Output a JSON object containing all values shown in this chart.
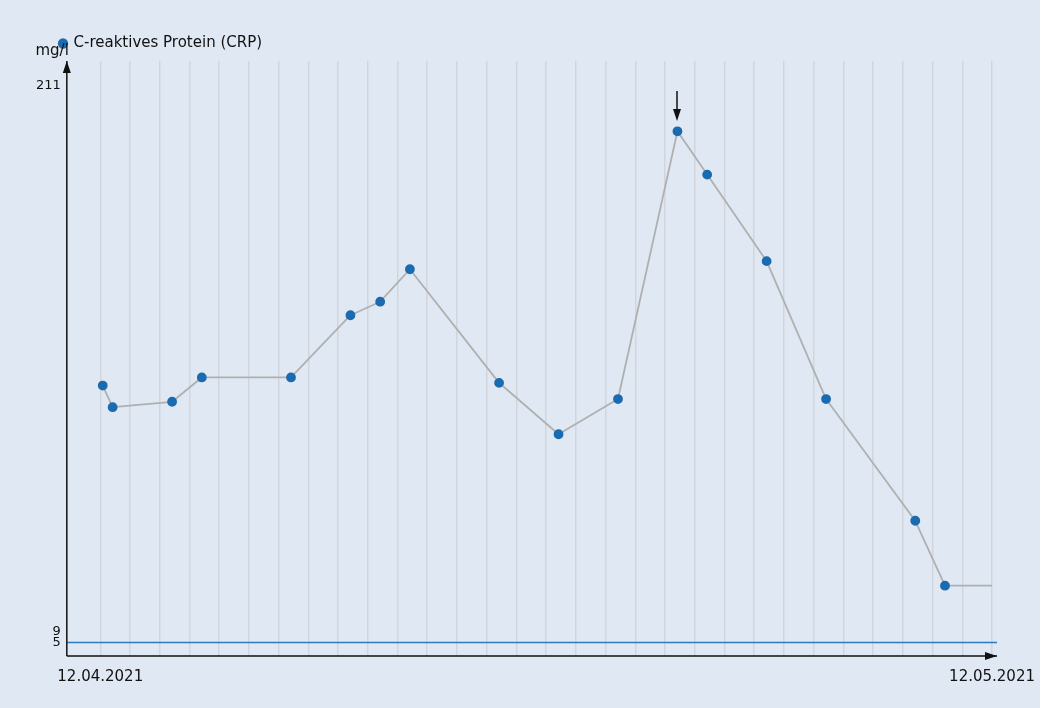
{
  "chart_data": {
    "type": "line",
    "ylabel": "mg/l",
    "legend": "top left",
    "grid": "x",
    "marker": "circle",
    "line_style": "solid",
    "xlim": [
      "2021-04-10T21:00",
      "2021-05-12T04:00"
    ],
    "xticks": [
      {
        "value": "2021-04-12T00:00",
        "label": "12.04.2021"
      },
      {
        "value": "2021-04-13T00:00",
        "label": null
      },
      {
        "value": "2021-04-14T00:00",
        "label": null
      },
      {
        "value": "2021-04-15T00:00",
        "label": null
      },
      {
        "value": "2021-04-16T00:00",
        "label": null
      },
      {
        "value": "2021-04-17T00:00",
        "label": null
      },
      {
        "value": "2021-04-18T00:00",
        "label": null
      },
      {
        "value": "2021-04-19T00:00",
        "label": null
      },
      {
        "value": "2021-04-20T00:00",
        "label": null
      },
      {
        "value": "2021-04-21T00:00",
        "label": null
      },
      {
        "value": "2021-04-22T00:00",
        "label": null
      },
      {
        "value": "2021-04-23T00:00",
        "label": null
      },
      {
        "value": "2021-04-24T00:00",
        "label": null
      },
      {
        "value": "2021-04-25T00:00",
        "label": null
      },
      {
        "value": "2021-04-26T00:00",
        "label": null
      },
      {
        "value": "2021-04-27T00:00",
        "label": null
      },
      {
        "value": "2021-04-28T00:00",
        "label": null
      },
      {
        "value": "2021-04-29T00:00",
        "label": null
      },
      {
        "value": "2021-04-30T00:00",
        "label": null
      },
      {
        "value": "2021-05-01T00:00",
        "label": null
      },
      {
        "value": "2021-05-02T00:00",
        "label": null
      },
      {
        "value": "2021-05-03T00:00",
        "label": null
      },
      {
        "value": "2021-05-04T00:00",
        "label": null
      },
      {
        "value": "2021-05-05T00:00",
        "label": null
      },
      {
        "value": "2021-05-06T00:00",
        "label": null
      },
      {
        "value": "2021-05-07T00:00",
        "label": null
      },
      {
        "value": "2021-05-08T00:00",
        "label": null
      },
      {
        "value": "2021-05-09T00:00",
        "label": null
      },
      {
        "value": "2021-05-10T00:00",
        "label": null
      },
      {
        "value": "2021-05-11T00:00",
        "label": null
      },
      {
        "value": "2021-05-12T00:00",
        "label": "12.05.2021"
      }
    ],
    "ylim": [
      0,
      220
    ],
    "yticks": [
      5,
      9,
      211
    ],
    "ref_lines": [
      {
        "axis": "y",
        "value": 5,
        "color": "#2a7bc0"
      }
    ],
    "series": [
      {
        "name": "C-reaktives Protein (CRP)",
        "color": "#1a6bb0",
        "x": [
          "2021-04-12T02:00",
          "2021-04-12T10:00",
          "2021-04-14T10:00",
          "2021-04-15T10:00",
          "2021-04-18T10:00",
          "2021-04-20T10:00",
          "2021-04-21T10:00",
          "2021-04-22T10:00",
          "2021-04-25T10:00",
          "2021-04-27T10:00",
          "2021-04-29T10:00",
          "2021-05-01T10:00",
          "2021-05-02T10:00",
          "2021-05-04T10:00",
          "2021-05-06T10:00",
          "2021-05-09T10:00",
          "2021-05-10T10:00"
        ],
        "values": [
          100,
          92,
          94,
          103,
          103,
          126,
          131,
          143,
          101,
          82,
          95,
          194,
          178,
          146,
          95,
          50,
          26
        ]
      },
      {
        "color": "#b0b0b0",
        "marker": "none",
        "x": [
          "2021-05-10T10:00",
          "2021-05-12T00:00"
        ],
        "values": [
          26,
          26
        ]
      }
    ]
  }
}
